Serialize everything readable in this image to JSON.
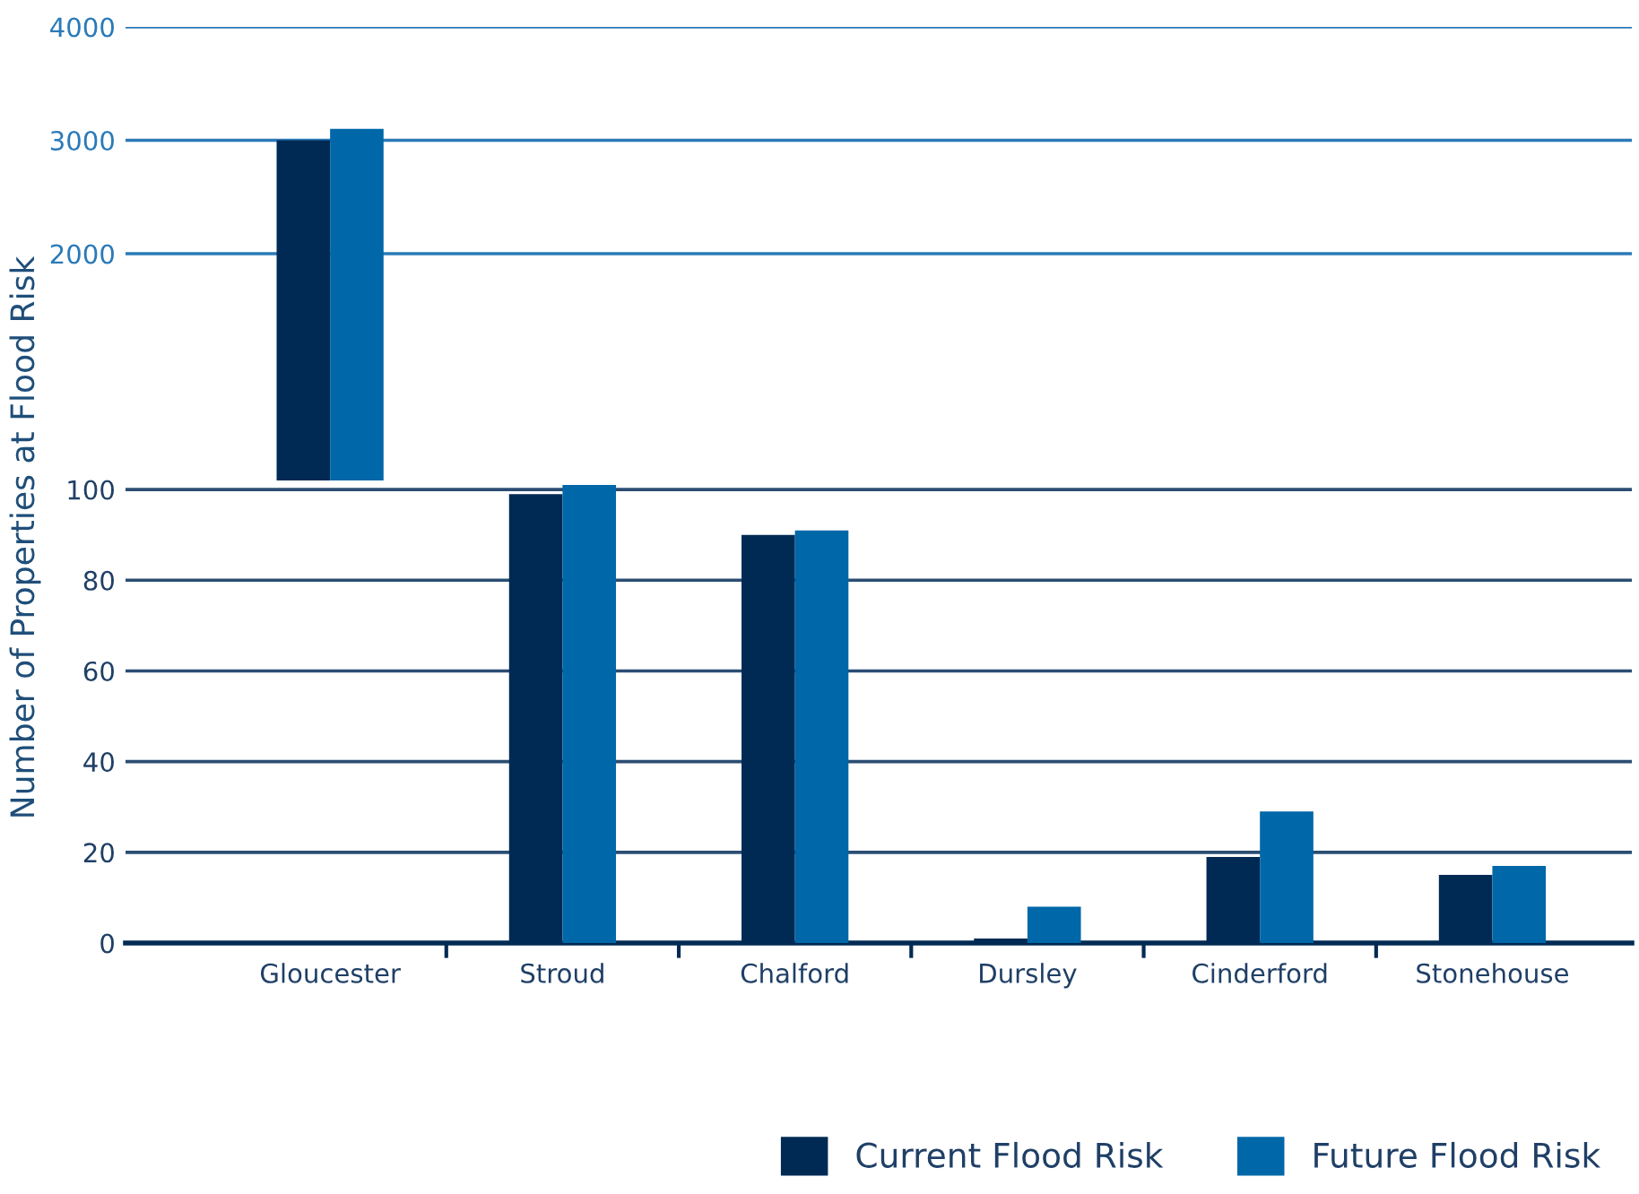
{
  "chart_data": [
    {
      "type": "bar",
      "categories": [
        null,
        null,
        null,
        null,
        null,
        null
      ],
      "series": [
        {
          "color": "#002a54",
          "values": [
            3000,
            null,
            null,
            null,
            null,
            null
          ]
        },
        {
          "color": "#0067a8",
          "values": [
            3100,
            null,
            null,
            null,
            null,
            null
          ]
        }
      ],
      "ylim": [
        0,
        4000
      ],
      "yticks": [
        2000,
        3000,
        4000
      ],
      "grid": "y",
      "tick_labels": "y"
    },
    {
      "type": "bar",
      "ylabel": "Number of Properties at Flood Risk",
      "categories": [
        "Gloucester",
        "Stroud",
        "Chalford",
        "Dursley",
        "Cinderford",
        "Stonehouse"
      ],
      "series": [
        {
          "name": "Current Flood Risk",
          "color": "#002a54",
          "values": [
            null,
            99,
            90,
            1,
            19,
            15
          ]
        },
        {
          "name": "Future Flood Risk",
          "color": "#0067a8",
          "values": [
            null,
            101,
            91,
            8,
            29,
            17
          ]
        }
      ],
      "ylim": [
        0,
        102
      ],
      "yticks": [
        0,
        20,
        40,
        60,
        80,
        100
      ],
      "grid": "y",
      "legend": "bottom right"
    }
  ]
}
